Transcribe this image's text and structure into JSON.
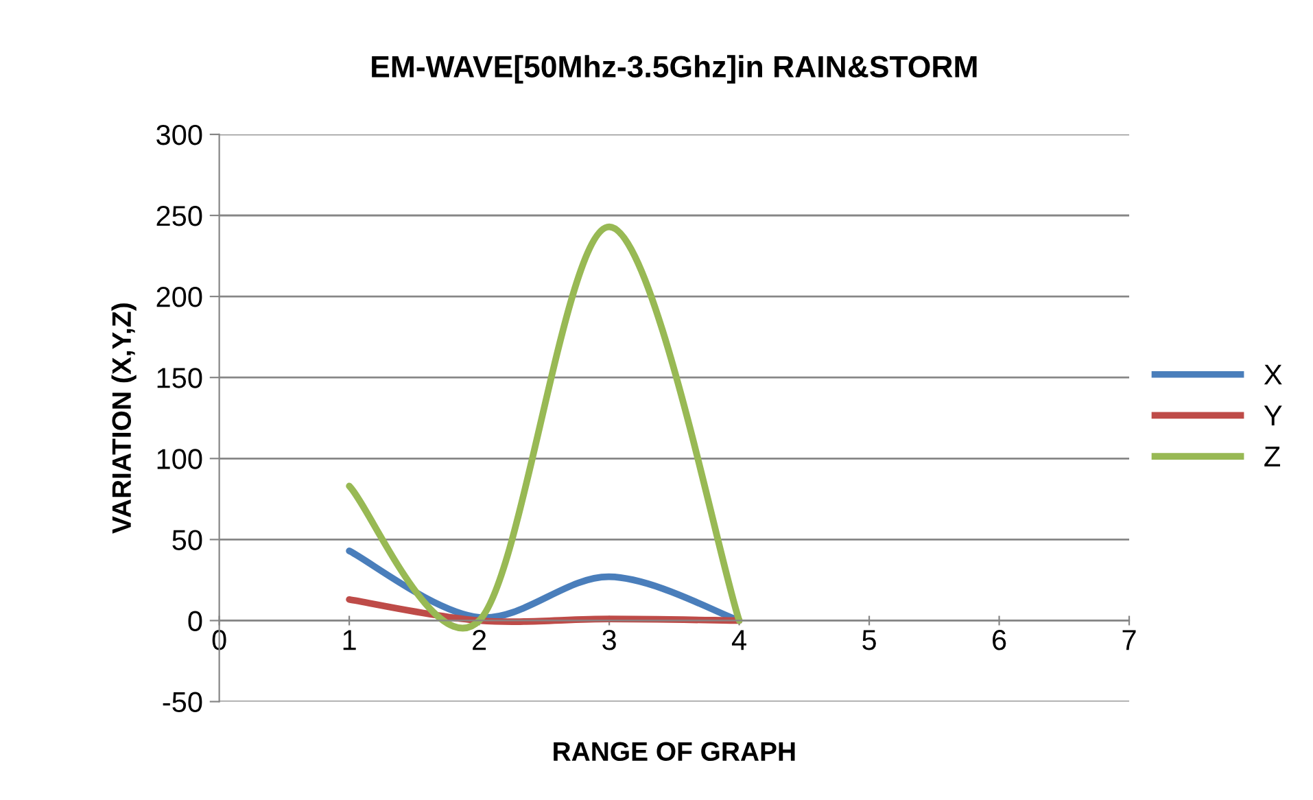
{
  "chart_data": {
    "type": "line",
    "title": "EM-WAVE[50Mhz-3.5Ghz]in RAIN&STORM",
    "xlabel": "RANGE OF GRAPH",
    "ylabel": "VARIATION (X,Y,Z)",
    "x": [
      1,
      2,
      3,
      4
    ],
    "series": [
      {
        "name": "X",
        "color": "#4a7ebb",
        "values": [
          43,
          2,
          27,
          0
        ]
      },
      {
        "name": "Y",
        "color": "#be4b48",
        "values": [
          13,
          0,
          1,
          0
        ]
      },
      {
        "name": "Z",
        "color": "#98b954",
        "values": [
          83,
          0,
          243,
          0
        ]
      }
    ],
    "xlim": [
      0,
      7
    ],
    "xticks": [
      0,
      1,
      2,
      3,
      4,
      5,
      6,
      7
    ],
    "ylim": [
      -50,
      300
    ],
    "yticks": [
      -50,
      0,
      50,
      100,
      150,
      200,
      250,
      300
    ],
    "grid": "y",
    "legend": "right",
    "marker": "none",
    "line_style": "solid"
  }
}
